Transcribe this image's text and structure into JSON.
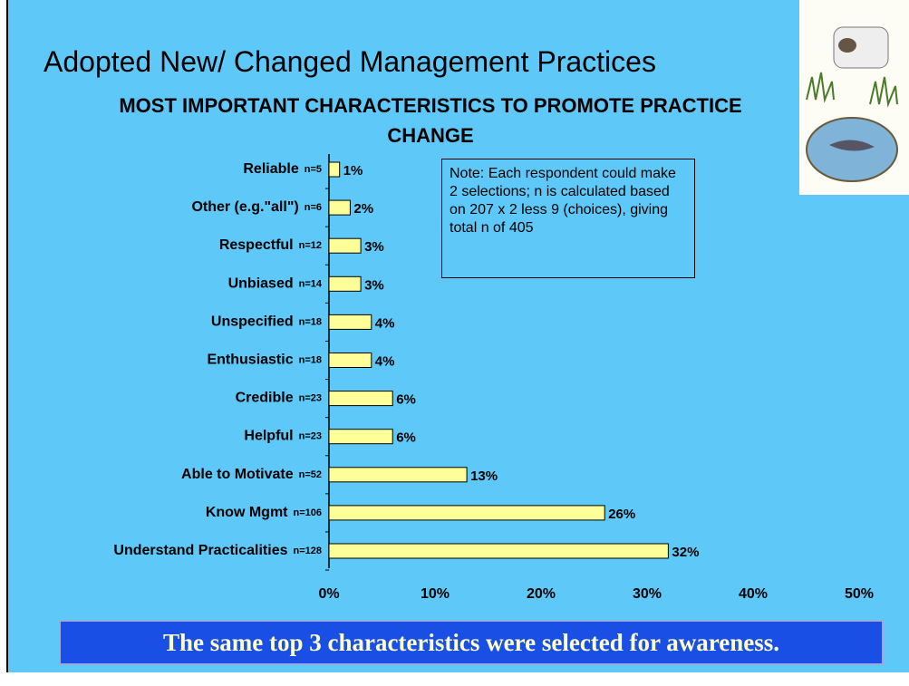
{
  "slide_title": "Adopted New/ Changed Management Practices",
  "note": "Note:  Each respondent could make 2 selections; n is calculated based on 207 x 2 less 9 (choices), giving total n of 405",
  "footer": "The same top 3 characteristics were selected for awareness.",
  "chart_data": {
    "type": "hbar",
    "title": "MOST IMPORTANT CHARACTERISTICS TO PROMOTE PRACTICE CHANGE",
    "categories": [
      "Reliable",
      "Other  (e.g.\"all\")",
      "Respectful",
      "Unbiased",
      "Unspecified",
      "Enthusiastic",
      "Credible",
      "Helpful",
      "Able to Motivate",
      "Know Mgmt",
      "Understand Practicalities"
    ],
    "n_labels": [
      "n=5",
      "n=6",
      "n=12",
      "n=14",
      "n=18",
      "n=18",
      "n=23",
      "n=23",
      "n=52",
      "n=106",
      "n=128"
    ],
    "values": [
      1,
      2,
      3,
      3,
      4,
      4,
      6,
      6,
      13,
      26,
      32
    ],
    "value_labels": [
      "1%",
      "2%",
      "3%",
      "3%",
      "4%",
      "4%",
      "6%",
      "6%",
      "13%",
      "26%",
      "32%"
    ],
    "color": "#ffff99",
    "xlim": [
      0,
      50
    ],
    "xticks": [
      {
        "value": 0,
        "label": "0%"
      },
      {
        "value": 10,
        "label": "10%"
      },
      {
        "value": 20,
        "label": "20%"
      },
      {
        "value": 30,
        "label": "30%"
      },
      {
        "value": 40,
        "label": "40%"
      },
      {
        "value": 50,
        "label": "50%"
      }
    ],
    "grid": false
  }
}
